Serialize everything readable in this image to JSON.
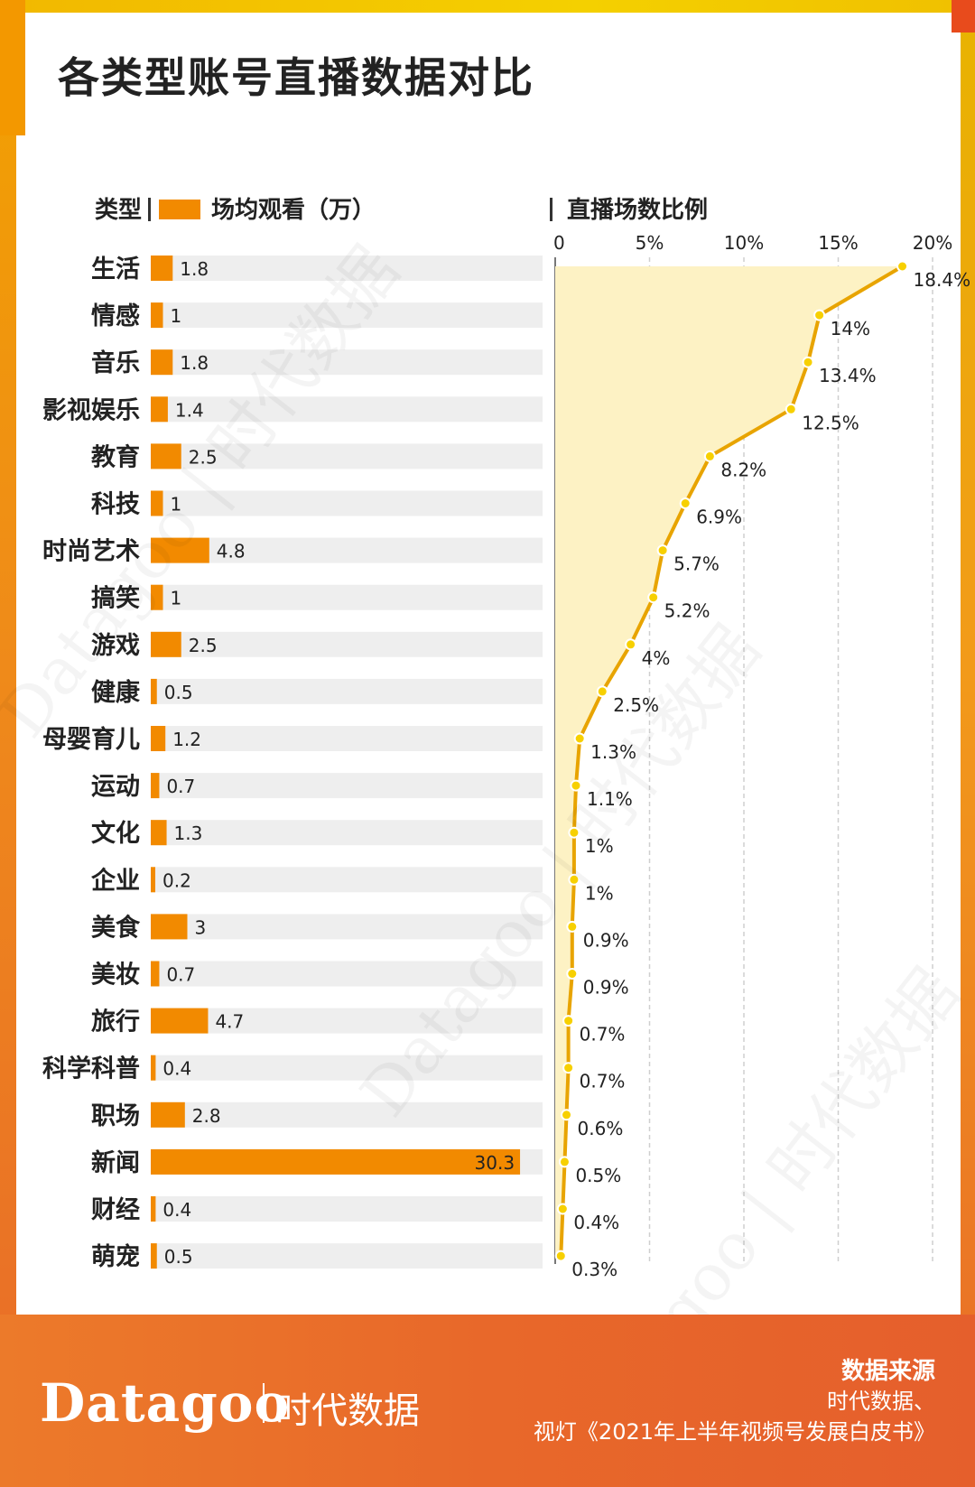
{
  "title": "各类型账号直播数据对比",
  "header": {
    "type_label": "类型",
    "bar_legend_label": "场均观看（万）",
    "line_legend_label": "直播场数比例"
  },
  "chart_data": [
    {
      "type": "bar",
      "orientation": "horizontal",
      "categories": [
        "生活",
        "情感",
        "音乐",
        "影视娱乐",
        "教育",
        "科技",
        "时尚艺术",
        "搞笑",
        "游戏",
        "健康",
        "母婴育儿",
        "运动",
        "文化",
        "企业",
        "美食",
        "美妆",
        "旅行",
        "科学科普",
        "职场",
        "新闻",
        "财经",
        "萌宠"
      ],
      "series": [
        {
          "name": "场均观看（万）",
          "values": [
            1.8,
            1,
            1.8,
            1.4,
            2.5,
            1,
            4.8,
            1,
            2.5,
            0.5,
            1.2,
            0.7,
            1.3,
            0.2,
            3,
            0.7,
            4.7,
            0.4,
            2.8,
            30.3,
            0.4,
            0.5
          ]
        }
      ],
      "value_labels": [
        "1.8",
        "1",
        "1.8",
        "1.4",
        "2.5",
        "1",
        "4.8",
        "1",
        "2.5",
        "0.5",
        "1.2",
        "0.7",
        "1.3",
        "0.2",
        "3",
        "0.7",
        "4.7",
        "0.4",
        "2.8",
        "30.3",
        "0.4",
        "0.5"
      ],
      "colors": {
        "bar": "#f28a00",
        "track": "#eeeeee"
      }
    },
    {
      "type": "area",
      "orientation": "vertical",
      "categories": [
        "生活",
        "情感",
        "音乐",
        "影视娱乐",
        "教育",
        "科技",
        "时尚艺术",
        "搞笑",
        "游戏",
        "健康",
        "母婴育儿",
        "运动",
        "文化",
        "企业",
        "美食",
        "美妆",
        "旅行",
        "科学科普",
        "职场",
        "新闻",
        "财经",
        "萌宠"
      ],
      "series": [
        {
          "name": "直播场数比例",
          "values": [
            18.4,
            14,
            13.4,
            12.5,
            8.2,
            6.9,
            5.7,
            5.2,
            4,
            2.5,
            1.3,
            1.1,
            1,
            1,
            0.9,
            0.9,
            0.7,
            0.7,
            0.6,
            0.5,
            0.4,
            0.3
          ]
        }
      ],
      "value_labels": [
        "18.4%",
        "14%",
        "13.4%",
        "12.5%",
        "8.2%",
        "6.9%",
        "5.7%",
        "5.2%",
        "4%",
        "2.5%",
        "1.3%",
        "1.1%",
        "1%",
        "1%",
        "0.9%",
        "0.9%",
        "0.7%",
        "0.7%",
        "0.6%",
        "0.5%",
        "0.4%",
        "0.3%"
      ],
      "xlim": [
        0,
        20
      ],
      "ticks": [
        "0",
        "5%",
        "10%",
        "15%",
        "20%"
      ],
      "grid": true,
      "colors": {
        "line": "#e8a400",
        "fill": "#fdf2c4",
        "point": "#f7d000"
      }
    }
  ],
  "watermark_text": "Datagoo | 时代数据",
  "footer": {
    "brand": "Datagoo",
    "brand_cn": "时代数据",
    "source_title": "数据来源",
    "source_line1": "时代数据、",
    "source_line2": "视灯《2021年上半年视频号发展白皮书》"
  }
}
